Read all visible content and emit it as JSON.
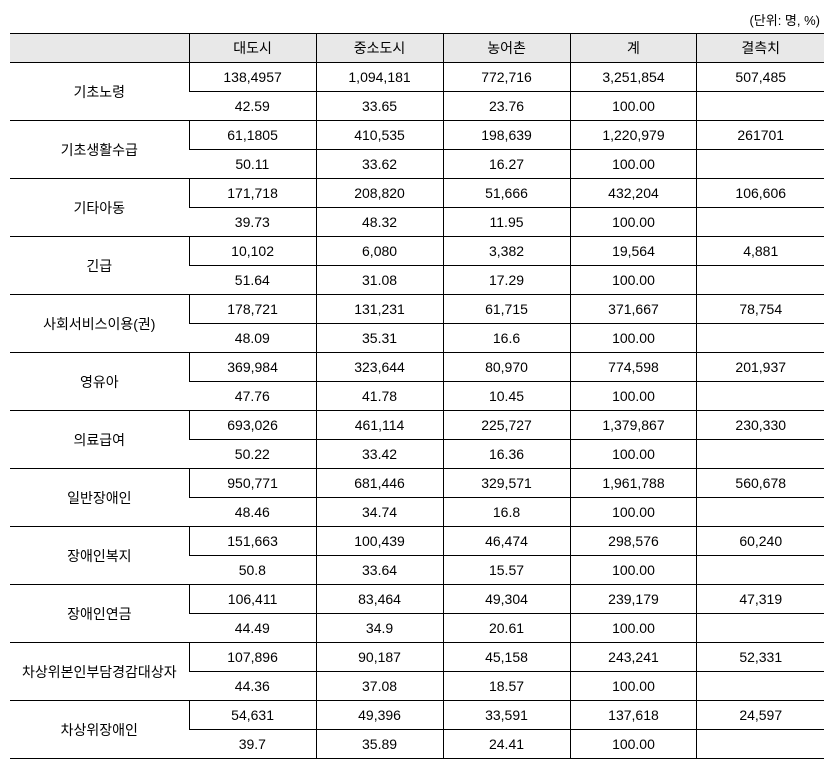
{
  "unit_label": "(단위: 명, %)",
  "headers": {
    "blank": "",
    "col1": "대도시",
    "col2": "중소도시",
    "col3": "농어촌",
    "col4": "계",
    "col5": "결측치"
  },
  "rows": [
    {
      "label": "기초노령",
      "count": {
        "c1": "138,4957",
        "c2": "1,094,181",
        "c3": "772,716",
        "c4": "3,251,854",
        "c5": "507,485"
      },
      "pct": {
        "c1": "42.59",
        "c2": "33.65",
        "c3": "23.76",
        "c4": "100.00",
        "c5": ""
      }
    },
    {
      "label": "기초생활수급",
      "count": {
        "c1": "61,1805",
        "c2": "410,535",
        "c3": "198,639",
        "c4": "1,220,979",
        "c5": "261701"
      },
      "pct": {
        "c1": "50.11",
        "c2": "33.62",
        "c3": "16.27",
        "c4": "100.00",
        "c5": ""
      }
    },
    {
      "label": "기타아동",
      "count": {
        "c1": "171,718",
        "c2": "208,820",
        "c3": "51,666",
        "c4": "432,204",
        "c5": "106,606"
      },
      "pct": {
        "c1": "39.73",
        "c2": "48.32",
        "c3": "11.95",
        "c4": "100.00",
        "c5": ""
      }
    },
    {
      "label": "긴급",
      "count": {
        "c1": "10,102",
        "c2": "6,080",
        "c3": "3,382",
        "c4": "19,564",
        "c5": "4,881"
      },
      "pct": {
        "c1": "51.64",
        "c2": "31.08",
        "c3": "17.29",
        "c4": "100.00",
        "c5": ""
      }
    },
    {
      "label": "사회서비스이용(권)",
      "count": {
        "c1": "178,721",
        "c2": "131,231",
        "c3": "61,715",
        "c4": "371,667",
        "c5": "78,754"
      },
      "pct": {
        "c1": "48.09",
        "c2": "35.31",
        "c3": "16.6",
        "c4": "100.00",
        "c5": ""
      }
    },
    {
      "label": "영유아",
      "count": {
        "c1": "369,984",
        "c2": "323,644",
        "c3": "80,970",
        "c4": "774,598",
        "c5": "201,937"
      },
      "pct": {
        "c1": "47.76",
        "c2": "41.78",
        "c3": "10.45",
        "c4": "100.00",
        "c5": ""
      }
    },
    {
      "label": "의료급여",
      "count": {
        "c1": "693,026",
        "c2": "461,114",
        "c3": "225,727",
        "c4": "1,379,867",
        "c5": "230,330"
      },
      "pct": {
        "c1": "50.22",
        "c2": "33.42",
        "c3": "16.36",
        "c4": "100.00",
        "c5": ""
      }
    },
    {
      "label": "일반장애인",
      "count": {
        "c1": "950,771",
        "c2": "681,446",
        "c3": "329,571",
        "c4": "1,961,788",
        "c5": "560,678"
      },
      "pct": {
        "c1": "48.46",
        "c2": "34.74",
        "c3": "16.8",
        "c4": "100.00",
        "c5": ""
      }
    },
    {
      "label": "장애인복지",
      "count": {
        "c1": "151,663",
        "c2": "100,439",
        "c3": "46,474",
        "c4": "298,576",
        "c5": "60,240"
      },
      "pct": {
        "c1": "50.8",
        "c2": "33.64",
        "c3": "15.57",
        "c4": "100.00",
        "c5": ""
      }
    },
    {
      "label": "장애인연금",
      "count": {
        "c1": "106,411",
        "c2": "83,464",
        "c3": "49,304",
        "c4": "239,179",
        "c5": "47,319"
      },
      "pct": {
        "c1": "44.49",
        "c2": "34.9",
        "c3": "20.61",
        "c4": "100.00",
        "c5": ""
      }
    },
    {
      "label": "차상위본인부담경감대상자",
      "count": {
        "c1": "107,896",
        "c2": "90,187",
        "c3": "45,158",
        "c4": "243,241",
        "c5": "52,331"
      },
      "pct": {
        "c1": "44.36",
        "c2": "37.08",
        "c3": "18.57",
        "c4": "100.00",
        "c5": ""
      }
    },
    {
      "label": "차상위장애인",
      "count": {
        "c1": "54,631",
        "c2": "49,396",
        "c3": "33,591",
        "c4": "137,618",
        "c5": "24,597"
      },
      "pct": {
        "c1": "39.7",
        "c2": "35.89",
        "c3": "24.41",
        "c4": "100.00",
        "c5": ""
      }
    }
  ],
  "style": {
    "header_bg": "#e8e8e8",
    "border_color": "#000000",
    "font_size": 14
  }
}
